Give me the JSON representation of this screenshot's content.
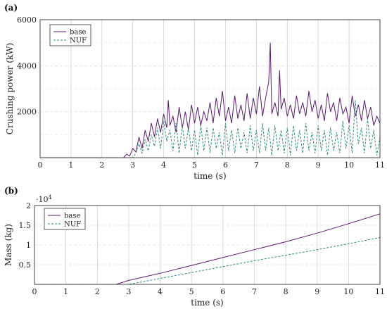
{
  "chart_data": [
    {
      "type": "line",
      "panel_label": "(a)",
      "xlabel": "time (s)",
      "ylabel": "Crushing power (kW)",
      "xlim": [
        0,
        11
      ],
      "ylim": [
        0,
        6000
      ],
      "xticks": [
        "0",
        "1",
        "2",
        "3",
        "4",
        "5",
        "6",
        "7",
        "8",
        "9",
        "10",
        "11"
      ],
      "yticks": [
        "2000",
        "4000",
        "6000"
      ],
      "ytick_values": [
        2000,
        4000,
        6000
      ],
      "grid": true,
      "legend": "top-left",
      "series": [
        {
          "name": "base",
          "color": "#5b1a6e",
          "style": "solid",
          "x": [
            0,
            2.7,
            2.8,
            2.9,
            3.0,
            3.1,
            3.2,
            3.3,
            3.4,
            3.5,
            3.6,
            3.7,
            3.8,
            3.9,
            4.0,
            4.1,
            4.15,
            4.2,
            4.3,
            4.4,
            4.5,
            4.6,
            4.7,
            4.8,
            4.9,
            5.0,
            5.1,
            5.2,
            5.3,
            5.4,
            5.5,
            5.6,
            5.7,
            5.8,
            5.9,
            6.0,
            6.1,
            6.2,
            6.3,
            6.4,
            6.5,
            6.6,
            6.7,
            6.8,
            6.9,
            7.0,
            7.1,
            7.2,
            7.3,
            7.4,
            7.45,
            7.5,
            7.6,
            7.7,
            7.75,
            7.8,
            7.9,
            8.0,
            8.1,
            8.2,
            8.3,
            8.4,
            8.5,
            8.6,
            8.7,
            8.8,
            8.9,
            9.0,
            9.1,
            9.2,
            9.3,
            9.4,
            9.5,
            9.6,
            9.7,
            9.8,
            9.9,
            10.0,
            10.1,
            10.2,
            10.3,
            10.4,
            10.5,
            10.6,
            10.7,
            10.8,
            10.9,
            11.0
          ],
          "y": [
            0,
            0,
            150,
            80,
            400,
            250,
            900,
            400,
            1200,
            700,
            1500,
            900,
            1700,
            1100,
            1900,
            1300,
            2500,
            1400,
            1800,
            1100,
            2200,
            1300,
            2000,
            1200,
            2300,
            1500,
            2200,
            1400,
            2000,
            1600,
            2400,
            1500,
            2600,
            1800,
            2900,
            1600,
            2200,
            1500,
            2700,
            1700,
            2300,
            1600,
            2800,
            1700,
            2600,
            1900,
            3100,
            1800,
            2600,
            3300,
            5000,
            1900,
            2400,
            1800,
            3800,
            2100,
            2600,
            1800,
            2300,
            1700,
            2700,
            1900,
            2400,
            1800,
            2900,
            2000,
            2500,
            1700,
            2300,
            1600,
            2800,
            2000,
            2400,
            1600,
            2600,
            1900,
            2200,
            1500,
            2700,
            1800,
            2300,
            1600,
            2500,
            1700,
            2200,
            1400,
            1800,
            1500
          ]
        },
        {
          "name": "NUF",
          "color": "#2e8b7e",
          "style": "dashed",
          "x": [
            0,
            3.0,
            3.1,
            3.2,
            3.3,
            3.4,
            3.5,
            3.6,
            3.7,
            3.8,
            3.9,
            4.0,
            4.1,
            4.2,
            4.3,
            4.4,
            4.5,
            4.6,
            4.7,
            4.8,
            4.9,
            5.0,
            5.1,
            5.2,
            5.3,
            5.4,
            5.5,
            5.6,
            5.7,
            5.8,
            5.9,
            6.0,
            6.1,
            6.2,
            6.3,
            6.4,
            6.5,
            6.6,
            6.7,
            6.8,
            6.9,
            7.0,
            7.1,
            7.2,
            7.3,
            7.4,
            7.5,
            7.6,
            7.7,
            7.8,
            7.9,
            8.0,
            8.1,
            8.2,
            8.3,
            8.4,
            8.5,
            8.6,
            8.7,
            8.8,
            8.9,
            9.0,
            9.1,
            9.2,
            9.3,
            9.4,
            9.5,
            9.6,
            9.7,
            9.8,
            9.9,
            10.0,
            10.1,
            10.2,
            10.3,
            10.4,
            10.5,
            10.6,
            10.7,
            10.8,
            10.9,
            11.0
          ],
          "y": [
            0,
            0,
            200,
            600,
            200,
            800,
            300,
            1000,
            500,
            1300,
            400,
            1600,
            700,
            1200,
            300,
            1500,
            200,
            1400,
            400,
            1300,
            300,
            1200,
            100,
            1400,
            300,
            1300,
            200,
            1300,
            400,
            1100,
            100,
            1500,
            300,
            1200,
            200,
            1300,
            400,
            1100,
            200,
            1400,
            300,
            1200,
            200,
            1500,
            300,
            1300,
            100,
            1400,
            300,
            1200,
            200,
            1300,
            100,
            1400,
            300,
            1200,
            200,
            1500,
            300,
            1100,
            200,
            1400,
            300,
            1200,
            100,
            1300,
            300,
            1100,
            200,
            1600,
            400,
            1400,
            200,
            2500,
            600,
            1300,
            200,
            1700,
            400,
            1200,
            100,
            900
          ]
        }
      ]
    },
    {
      "type": "line",
      "panel_label": "(b)",
      "xlabel": "time (s)",
      "ylabel": "Mass (kg)",
      "y_multiplier": "·10",
      "y_multiplier_exp": "4",
      "xlim": [
        0,
        11
      ],
      "ylim": [
        0,
        2
      ],
      "xticks": [
        "0",
        "1",
        "2",
        "3",
        "4",
        "5",
        "6",
        "7",
        "8",
        "9",
        "10",
        "11"
      ],
      "yticks": [
        "0.5",
        "1",
        "1.5",
        "2"
      ],
      "ytick_values": [
        0.5,
        1,
        1.5,
        2
      ],
      "grid": true,
      "legend": "top-left",
      "series": [
        {
          "name": "base",
          "color": "#5b1a6e",
          "style": "solid",
          "x": [
            0,
            2.6,
            3.0,
            4.0,
            5.0,
            6.0,
            7.0,
            8.0,
            9.0,
            10.0,
            11.0
          ],
          "y": [
            0,
            0,
            0.1,
            0.28,
            0.48,
            0.68,
            0.88,
            1.08,
            1.3,
            1.54,
            1.79
          ]
        },
        {
          "name": "NUF",
          "color": "#2e8b7e",
          "style": "dashed",
          "x": [
            0,
            3.0,
            4.0,
            5.0,
            6.0,
            7.0,
            8.0,
            9.0,
            10.0,
            11.0
          ],
          "y": [
            0,
            0,
            0.15,
            0.3,
            0.45,
            0.6,
            0.74,
            0.88,
            1.03,
            1.19
          ]
        }
      ]
    }
  ]
}
